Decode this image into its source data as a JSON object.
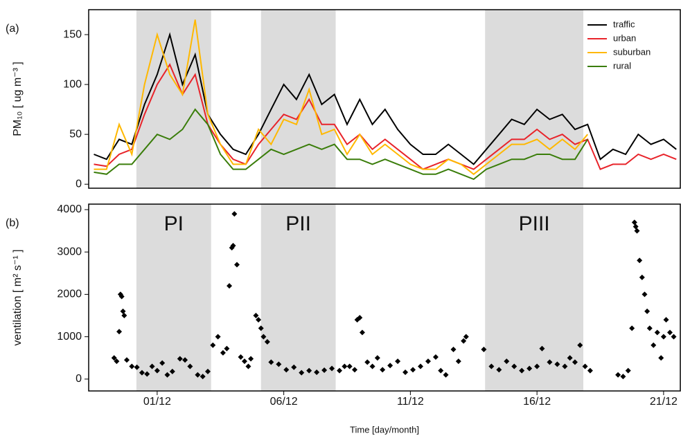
{
  "chart_data": [
    {
      "type": "line",
      "panel_label": "(a)",
      "ylabel": "PM₁₀ [ ug m⁻³ ]",
      "x": [
        -1.5,
        -1,
        -0.5,
        0,
        0.5,
        1,
        1.5,
        2,
        2.5,
        3,
        3.5,
        4,
        4.5,
        5,
        5.5,
        6,
        6.5,
        7,
        7.5,
        8,
        8.5,
        9,
        9.5,
        10,
        10.5,
        11,
        11.5,
        12,
        12.5,
        13,
        13.5,
        14,
        14.5,
        15,
        15.5,
        16,
        16.5,
        17,
        17.5,
        18,
        18.5,
        19,
        19.5,
        20,
        20.5,
        21,
        21.5
      ],
      "series": [
        {
          "name": "traffic",
          "color": "#000000",
          "values": [
            30,
            25,
            45,
            40,
            80,
            110,
            150,
            100,
            130,
            70,
            50,
            35,
            30,
            50,
            75,
            100,
            85,
            110,
            80,
            90,
            60,
            85,
            60,
            75,
            55,
            40,
            30,
            30,
            40,
            30,
            20,
            35,
            50,
            65,
            60,
            75,
            65,
            70,
            55,
            60,
            25,
            35,
            30,
            50,
            40,
            45,
            35
          ]
        },
        {
          "name": "urban",
          "color": "#e8232a",
          "values": [
            20,
            18,
            30,
            35,
            70,
            100,
            120,
            90,
            110,
            60,
            40,
            25,
            20,
            40,
            55,
            70,
            65,
            85,
            60,
            60,
            40,
            50,
            35,
            45,
            35,
            25,
            15,
            20,
            25,
            20,
            15,
            25,
            35,
            45,
            45,
            55,
            45,
            50,
            40,
            45,
            15,
            20,
            20,
            30,
            25,
            30,
            25
          ]
        },
        {
          "name": "suburban",
          "color": "#ffb800",
          "values": [
            15,
            15,
            60,
            30,
            100,
            150,
            110,
            90,
            165,
            70,
            40,
            20,
            20,
            55,
            40,
            65,
            60,
            95,
            50,
            55,
            30,
            50,
            30,
            40,
            30,
            20,
            15,
            15,
            25,
            20,
            10,
            20,
            30,
            40,
            40,
            45,
            35,
            45,
            35,
            50,
            null,
            null,
            null,
            null,
            null,
            null,
            null
          ]
        },
        {
          "name": "rural",
          "color": "#3a7d0a",
          "values": [
            12,
            10,
            20,
            20,
            35,
            50,
            45,
            55,
            75,
            60,
            30,
            15,
            15,
            25,
            35,
            30,
            35,
            40,
            35,
            40,
            25,
            25,
            20,
            25,
            20,
            15,
            10,
            10,
            15,
            10,
            5,
            15,
            20,
            25,
            25,
            30,
            30,
            25,
            25,
            45,
            null,
            null,
            null,
            null,
            null,
            null,
            null
          ]
        }
      ],
      "xlim": [
        -1.705,
        21.66
      ],
      "ylim": [
        -4,
        175
      ],
      "yticks": [
        0,
        50,
        100,
        150
      ],
      "legend": "top-right"
    },
    {
      "type": "scatter",
      "panel_label": "(b)",
      "ylabel": "ventilation [ m² s⁻¹ ]",
      "xlabel": "Time [day/month]",
      "color": "#000000",
      "x": [
        -0.7,
        -0.6,
        -0.5,
        -0.45,
        -0.4,
        -0.35,
        -0.3,
        -0.2,
        0.0,
        0.2,
        0.4,
        0.6,
        0.8,
        1.0,
        1.2,
        1.4,
        1.6,
        1.9,
        2.1,
        2.3,
        2.6,
        2.8,
        3.0,
        3.2,
        3.4,
        3.6,
        3.75,
        3.85,
        3.95,
        4.0,
        4.05,
        4.15,
        4.3,
        4.45,
        4.6,
        4.7,
        4.9,
        5.0,
        5.1,
        5.2,
        5.35,
        5.5,
        5.8,
        6.1,
        6.4,
        6.7,
        7.0,
        7.3,
        7.6,
        7.9,
        8.2,
        8.4,
        8.6,
        8.8,
        8.9,
        9.0,
        9.1,
        9.3,
        9.5,
        9.7,
        9.9,
        10.2,
        10.5,
        10.8,
        11.1,
        11.4,
        11.7,
        12.0,
        12.2,
        12.4,
        12.7,
        12.9,
        13.1,
        13.2,
        13.9,
        14.2,
        14.5,
        14.8,
        15.1,
        15.4,
        15.7,
        16.0,
        16.2,
        16.5,
        16.8,
        17.1,
        17.3,
        17.5,
        17.7,
        17.9,
        18.1,
        19.2,
        19.4,
        19.6,
        19.75,
        19.85,
        19.9,
        19.95,
        20.05,
        20.15,
        20.25,
        20.35,
        20.45,
        20.6,
        20.75,
        20.9,
        21.0,
        21.1,
        21.25,
        21.4
      ],
      "values": [
        500,
        420,
        1120,
        2000,
        1950,
        1600,
        1500,
        450,
        300,
        280,
        150,
        120,
        300,
        200,
        380,
        100,
        180,
        480,
        450,
        300,
        100,
        60,
        180,
        800,
        1000,
        620,
        720,
        2200,
        3100,
        3150,
        3900,
        2700,
        520,
        420,
        300,
        480,
        1500,
        1400,
        1200,
        1000,
        880,
        400,
        350,
        220,
        280,
        150,
        200,
        160,
        210,
        250,
        200,
        300,
        300,
        220,
        1400,
        1450,
        1100,
        400,
        300,
        500,
        220,
        320,
        420,
        160,
        220,
        300,
        420,
        520,
        200,
        100,
        700,
        420,
        900,
        1000,
        700,
        300,
        220,
        420,
        300,
        200,
        250,
        300,
        720,
        400,
        350,
        300,
        500,
        400,
        800,
        300,
        200,
        100,
        60,
        200,
        1200,
        3700,
        3600,
        3500,
        2800,
        2400,
        2000,
        1600,
        1200,
        800,
        1100,
        500,
        1000,
        1400,
        1100,
        1000
      ],
      "xlim": [
        -1.705,
        21.66
      ],
      "ylim": [
        -280,
        4130
      ],
      "yticks": [
        0,
        1000,
        2000,
        3000,
        4000
      ],
      "xticks": [
        {
          "value": 1,
          "label": "01/12"
        },
        {
          "value": 6,
          "label": "06/12"
        },
        {
          "value": 11,
          "label": "11/12"
        },
        {
          "value": 16,
          "label": "16/12"
        },
        {
          "value": 21,
          "label": "21/12"
        }
      ],
      "periods": [
        {
          "label": "PI",
          "start": 0.18,
          "end": 3.13
        },
        {
          "label": "PII",
          "start": 5.1,
          "end": 8.05
        },
        {
          "label": "PIII",
          "start": 13.95,
          "end": 17.83
        }
      ]
    }
  ]
}
